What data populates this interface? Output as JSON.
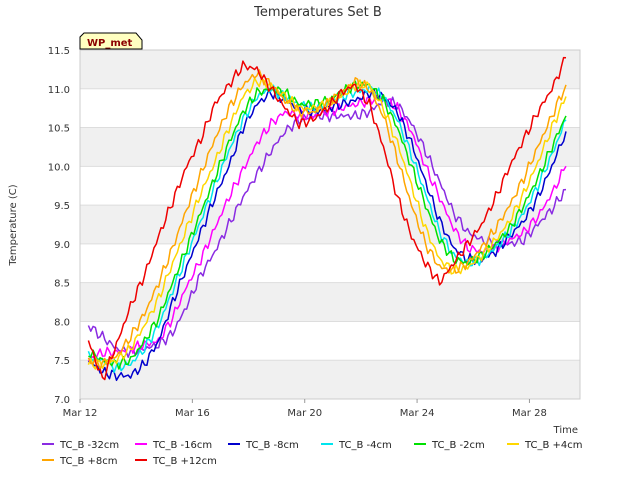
{
  "chart_data": {
    "type": "line",
    "title": "Temperatures Set B",
    "xlabel": "Time",
    "ylabel": "Temperature (C)",
    "badge": "WP_met",
    "xlim": [
      12,
      29.8
    ],
    "ylim": [
      7.0,
      11.5
    ],
    "x_ticks": [
      12,
      16,
      20,
      24,
      28
    ],
    "x_tick_labels": [
      "Mar 12",
      "Mar 16",
      "Mar 20",
      "Mar 24",
      "Mar 28"
    ],
    "y_ticks": [
      7.0,
      7.5,
      8.0,
      8.5,
      9.0,
      9.5,
      10.0,
      10.5,
      11.0,
      11.5
    ],
    "y_tick_labels": [
      "7.0",
      "7.5",
      "8.0",
      "8.5",
      "9.0",
      "9.5",
      "10.0",
      "10.5",
      "11.0",
      "11.5"
    ],
    "bands": true,
    "x": [
      12.3,
      12.8,
      13.3,
      13.8,
      14.3,
      14.8,
      15.3,
      15.8,
      16.3,
      16.8,
      17.3,
      17.8,
      18.3,
      18.8,
      19.3,
      19.8,
      20.3,
      20.8,
      21.3,
      21.8,
      22.3,
      22.8,
      23.3,
      23.8,
      24.3,
      24.8,
      25.3,
      25.8,
      26.3,
      26.8,
      27.3,
      27.8,
      28.3,
      28.8,
      29.3
    ],
    "series": [
      {
        "name": "TC_B -32cm",
        "color": "#8a2be2",
        "values": [
          7.95,
          7.8,
          7.65,
          7.6,
          7.65,
          7.7,
          7.85,
          8.2,
          8.6,
          8.9,
          9.25,
          9.6,
          9.9,
          10.2,
          10.45,
          10.6,
          10.65,
          10.65,
          10.65,
          10.65,
          10.7,
          10.85,
          10.8,
          10.55,
          10.2,
          9.8,
          9.4,
          9.15,
          9.05,
          9.0,
          9.0,
          9.05,
          9.25,
          9.45,
          9.7
        ]
      },
      {
        "name": "TC_B -16cm",
        "color": "#ff00ff",
        "values": [
          7.5,
          7.6,
          7.6,
          7.65,
          7.7,
          7.75,
          8.05,
          8.45,
          8.8,
          9.2,
          9.6,
          9.95,
          10.3,
          10.55,
          10.7,
          10.65,
          10.65,
          10.7,
          10.75,
          10.8,
          10.85,
          10.9,
          10.75,
          10.45,
          10.0,
          9.6,
          9.2,
          8.95,
          8.9,
          8.95,
          9.05,
          9.15,
          9.35,
          9.65,
          10.0
        ]
      },
      {
        "name": "TC_B -8cm",
        "color": "#0000cd",
        "values": [
          7.5,
          7.35,
          7.3,
          7.3,
          7.45,
          7.75,
          8.25,
          8.7,
          9.15,
          9.6,
          10.0,
          10.5,
          10.8,
          10.95,
          10.85,
          10.75,
          10.7,
          10.75,
          10.8,
          10.85,
          10.95,
          10.9,
          10.7,
          10.3,
          9.8,
          9.3,
          8.95,
          8.8,
          8.8,
          8.9,
          9.1,
          9.3,
          9.6,
          10.0,
          10.45
        ]
      },
      {
        "name": "TC_B -4cm",
        "color": "#00e5ee",
        "values": [
          7.55,
          7.5,
          7.4,
          7.45,
          7.65,
          7.95,
          8.4,
          8.85,
          9.3,
          9.75,
          10.2,
          10.6,
          10.9,
          11.0,
          10.9,
          10.8,
          10.75,
          10.8,
          10.9,
          10.95,
          11.0,
          10.9,
          10.6,
          10.15,
          9.65,
          9.15,
          8.85,
          8.75,
          8.8,
          8.95,
          9.15,
          9.4,
          9.75,
          10.15,
          10.6
        ]
      },
      {
        "name": "TC_B -2cm",
        "color": "#00e000",
        "values": [
          7.6,
          7.5,
          7.45,
          7.5,
          7.75,
          8.05,
          8.5,
          8.95,
          9.4,
          9.85,
          10.3,
          10.7,
          10.95,
          11.0,
          10.95,
          10.8,
          10.8,
          10.85,
          10.95,
          11.05,
          11.05,
          10.85,
          10.5,
          10.0,
          9.5,
          9.05,
          8.8,
          8.75,
          8.85,
          9.0,
          9.2,
          9.5,
          9.85,
          10.25,
          10.65
        ]
      },
      {
        "name": "TC_B +4cm",
        "color": "#ffd700",
        "values": [
          7.45,
          7.45,
          7.5,
          7.65,
          7.95,
          8.3,
          8.75,
          9.2,
          9.65,
          10.05,
          10.5,
          10.9,
          11.1,
          11.05,
          10.9,
          10.75,
          10.75,
          10.8,
          10.9,
          11.05,
          11.05,
          10.75,
          10.3,
          9.75,
          9.2,
          8.8,
          8.65,
          8.7,
          8.85,
          9.05,
          9.3,
          9.65,
          10.05,
          10.5,
          10.9
        ]
      },
      {
        "name": "TC_B +8cm",
        "color": "#ffa500",
        "values": [
          7.5,
          7.45,
          7.55,
          7.8,
          8.1,
          8.5,
          8.95,
          9.45,
          9.9,
          10.35,
          10.75,
          11.05,
          11.2,
          11.05,
          10.85,
          10.7,
          10.7,
          10.8,
          10.95,
          11.1,
          11.0,
          10.65,
          10.1,
          9.5,
          9.0,
          8.7,
          8.65,
          8.75,
          8.95,
          9.2,
          9.5,
          9.85,
          10.25,
          10.65,
          11.05
        ]
      },
      {
        "name": "TC_B +12cm",
        "color": "#ee0000",
        "values": [
          7.75,
          7.25,
          7.7,
          8.2,
          8.6,
          9.1,
          9.55,
          10.0,
          10.35,
          10.8,
          11.05,
          11.3,
          11.25,
          11.0,
          10.75,
          10.55,
          10.6,
          10.75,
          10.95,
          11.05,
          10.8,
          10.25,
          9.6,
          9.1,
          8.75,
          8.5,
          8.75,
          9.0,
          9.25,
          9.6,
          10.0,
          10.35,
          10.7,
          11.0,
          11.4
        ]
      }
    ]
  }
}
